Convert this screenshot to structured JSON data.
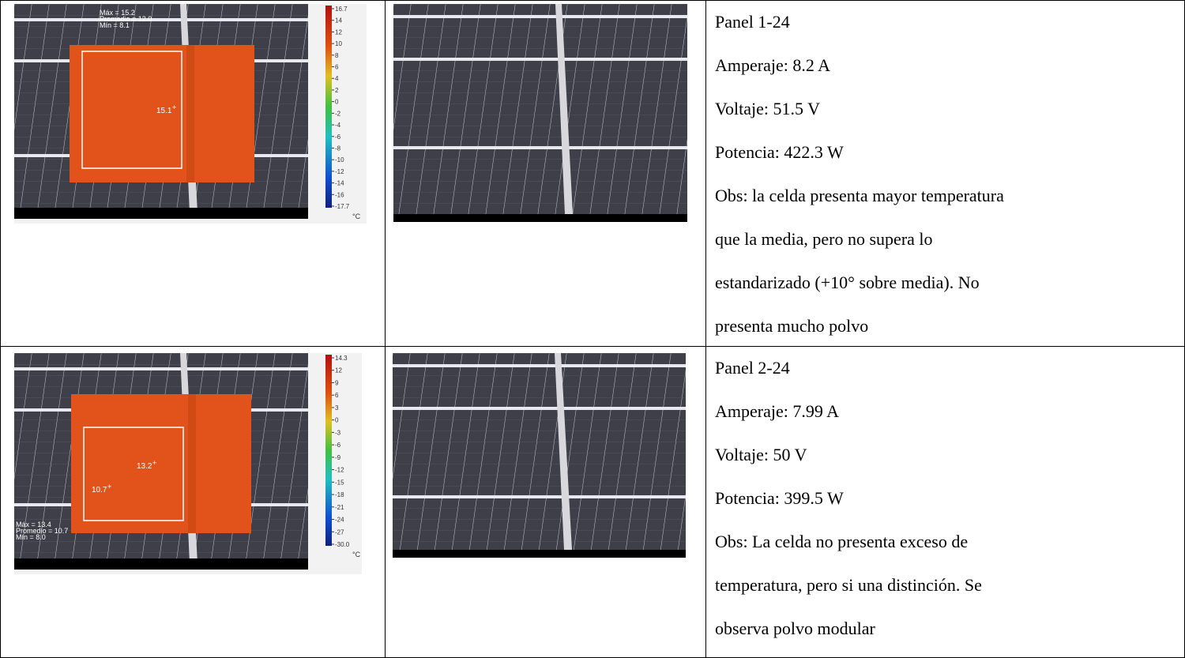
{
  "table": {
    "rows": [
      {
        "thermal": {
          "stats": [
            "Máx = 15.2",
            "Promedio = 12.0",
            "Mín = 8.1"
          ],
          "spots": [
            "15.1"
          ],
          "scale": [
            "16.7",
            "14",
            "12",
            "10",
            "8",
            "6",
            "4",
            "2",
            "0",
            "-2",
            "-4",
            "-6",
            "-8",
            "-10",
            "-12",
            "-14",
            "-16",
            "-17.7"
          ],
          "unit": "°C"
        },
        "text": [
          "Panel 1-24",
          "Amperaje: 8.2 A",
          "Voltaje: 51.5 V",
          "Potencia: 422.3 W",
          "Obs: la celda presenta mayor temperatura",
          "que la media, pero no supera lo",
          "estandarizado (+10° sobre media). No",
          "presenta mucho polvo"
        ]
      },
      {
        "thermal": {
          "stats": [
            "Máx = 13.4",
            "Promedio = 10.7",
            "Mín = 8.0"
          ],
          "spots": [
            "13.2",
            "10.7"
          ],
          "scale": [
            "14.3",
            "12",
            "9",
            "6",
            "3",
            "0",
            "-3",
            "-6",
            "-9",
            "-12",
            "-15",
            "-18",
            "-21",
            "-24",
            "-27",
            "-30.0"
          ],
          "unit": "°C"
        },
        "text": [
          "Panel 2-24",
          "Amperaje: 7.99 A",
          "Voltaje: 50 V",
          "Potencia: 399.5 W",
          "Obs: La celda no presenta exceso de",
          "temperatura, pero si una distinción. Se",
          "observa polvo modular"
        ]
      }
    ]
  }
}
